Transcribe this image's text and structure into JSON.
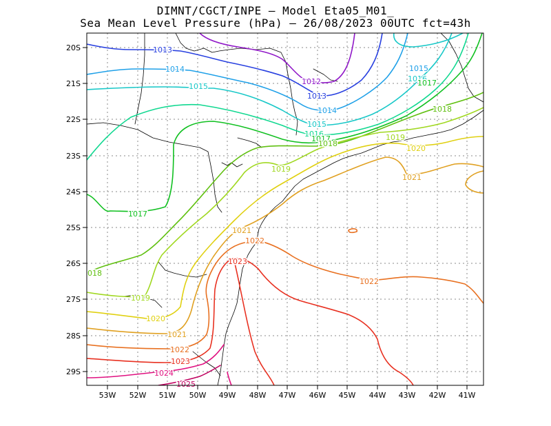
{
  "title_line1": "DIMNT/CGCT/INPE —  Model Eta05_M01_",
  "title_line2": "Sea Mean Level Pressure (hPa) — 26/08/2023 00UTC fct=43h",
  "axes": {
    "lat_ticks": [
      "20S",
      "21S",
      "22S",
      "23S",
      "24S",
      "25S",
      "26S",
      "27S",
      "28S",
      "29S"
    ],
    "lon_ticks": [
      "53W",
      "52W",
      "51W",
      "50W",
      "49W",
      "48W",
      "47W",
      "46W",
      "45W",
      "44W",
      "43W",
      "42W",
      "41W"
    ]
  },
  "contour_labels": [
    {
      "text": "1013",
      "color": "#2840e0"
    },
    {
      "text": "1014",
      "color": "#1ea0e8"
    },
    {
      "text": "1015",
      "color": "#18c8c8"
    },
    {
      "text": "1012",
      "color": "#9018c8"
    },
    {
      "text": "1013",
      "color": "#2840e0"
    },
    {
      "text": "1014",
      "color": "#1ea0e8"
    },
    {
      "text": "1015",
      "color": "#18c8c8"
    },
    {
      "text": "1016",
      "color": "#10d890"
    },
    {
      "text": "1017",
      "color": "#10c020"
    },
    {
      "text": "1018",
      "color": "#60c010"
    },
    {
      "text": "1015",
      "color": "#1ea0e8"
    },
    {
      "text": "1016",
      "color": "#18c8c8"
    },
    {
      "text": "1017",
      "color": "#10c020"
    },
    {
      "text": "1018",
      "color": "#60c010"
    },
    {
      "text": "1019",
      "color": "#a0d820"
    },
    {
      "text": "1020",
      "color": "#e0d010"
    },
    {
      "text": "1021",
      "color": "#e0a020"
    },
    {
      "text": "1019",
      "color": "#a0d820"
    },
    {
      "text": "1017",
      "color": "#10c020"
    },
    {
      "text": "1021",
      "color": "#e0a020"
    },
    {
      "text": "1022",
      "color": "#e87020"
    },
    {
      "text": "1023",
      "color": "#e83020"
    },
    {
      "text": "1022",
      "color": "#e87020"
    },
    {
      "text": "018",
      "color": "#60c010"
    },
    {
      "text": "1019",
      "color": "#a0d820"
    },
    {
      "text": "1020",
      "color": "#e0d010"
    },
    {
      "text": "1021",
      "color": "#e0a020"
    },
    {
      "text": "1022",
      "color": "#e87020"
    },
    {
      "text": "1023",
      "color": "#e83020"
    },
    {
      "text": "1024",
      "color": "#e01080"
    },
    {
      "text": "1025",
      "color": "#c00060"
    }
  ]
}
